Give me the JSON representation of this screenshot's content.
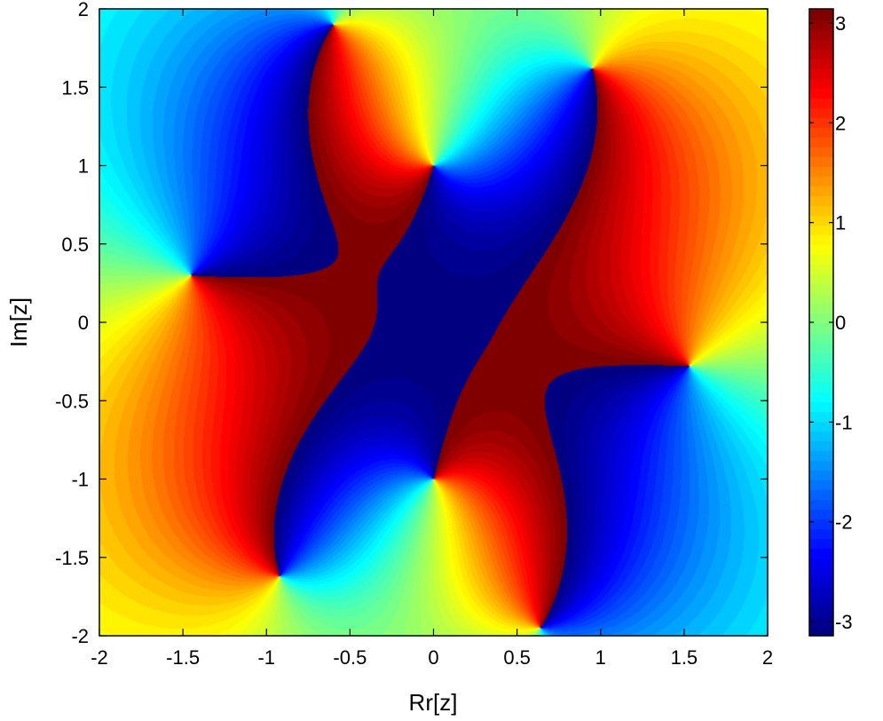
{
  "chart_data": {
    "type": "heatmap",
    "title": "",
    "xlabel": "Rr[z]",
    "ylabel": "Im[z]",
    "xlim": [
      -2,
      2
    ],
    "ylim": [
      -2,
      2
    ],
    "x_ticks": [
      "-2",
      "-1.5",
      "-1",
      "-0.5",
      "0",
      "0.5",
      "1",
      "1.5",
      "2"
    ],
    "y_ticks": [
      "2",
      "1.5",
      "1",
      "0.5",
      "0",
      "-0.5",
      "-1",
      "-1.5",
      "-2"
    ],
    "colorbar": {
      "range": [
        -3.1416,
        3.1416
      ],
      "ticks": [
        "3",
        "2",
        "1",
        "0",
        "-1",
        "-2",
        "-3"
      ],
      "colormap": "jet"
    },
    "grid": false,
    "value": "phase arg(f(z)) in radians",
    "zeros": [
      {
        "re": 0.0,
        "im": 1.0
      },
      {
        "re": 0.0,
        "im": -1.0
      },
      {
        "re": -1.45,
        "im": 0.3
      },
      {
        "re": 1.53,
        "im": -0.28
      }
    ],
    "poles": [
      {
        "re": -0.6,
        "im": 1.9
      },
      {
        "re": 0.95,
        "im": 1.62
      },
      {
        "re": -0.92,
        "im": -1.62
      },
      {
        "re": 0.64,
        "im": -1.95
      }
    ]
  }
}
